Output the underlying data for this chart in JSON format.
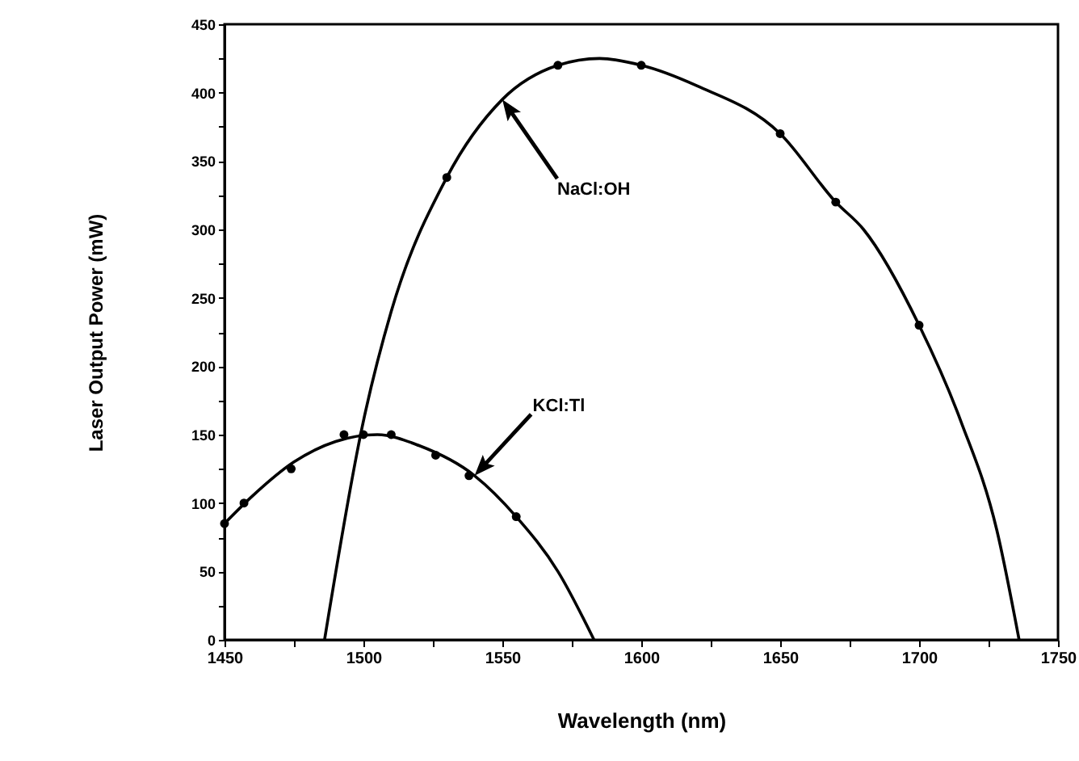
{
  "chart_data": {
    "type": "scatter",
    "xlabel": "Wavelength    (nm)",
    "ylabel": "Laser Output Power    (mW)",
    "xlim": [
      1450,
      1750
    ],
    "ylim": [
      0,
      450
    ],
    "xticks": [
      1450,
      {
        "value": 1475,
        "label": null
      },
      1500,
      {
        "value": 1525,
        "label": null
      },
      1550,
      {
        "value": 1575,
        "label": null
      },
      1600,
      {
        "value": 1625,
        "label": null
      },
      1650,
      {
        "value": 1675,
        "label": null
      },
      1700,
      {
        "value": 1725,
        "label": null
      },
      1750
    ],
    "yticks": [
      0,
      {
        "value": 25,
        "label": null
      },
      50,
      {
        "value": 75,
        "label": null
      },
      100,
      {
        "value": 125,
        "label": null
      },
      150,
      {
        "value": 175,
        "label": null
      },
      200,
      {
        "value": 225,
        "label": null
      },
      250,
      {
        "value": 275,
        "label": null
      },
      300,
      {
        "value": 325,
        "label": null
      },
      350,
      {
        "value": 375,
        "label": null
      },
      400,
      {
        "value": 425,
        "label": null
      },
      450
    ],
    "marker": "circle",
    "grid": false,
    "series": [
      {
        "type": "scatter",
        "color": "#000000",
        "x": [
          1450,
          1457,
          1474,
          1493,
          1500,
          1510,
          1526,
          1538,
          1555
        ],
        "values": [
          85,
          100,
          125,
          150,
          150,
          150,
          135,
          120,
          90
        ]
      },
      {
        "type": "line",
        "color": "#000000",
        "marker": "none",
        "x": [
          1450,
          1460,
          1475,
          1490,
          1505,
          1520,
          1540,
          1555,
          1570,
          1583
        ],
        "values": [
          85,
          105,
          130,
          145,
          150,
          142,
          120,
          90,
          50,
          0
        ]
      },
      {
        "type": "scatter",
        "color": "#000000",
        "x": [
          1530,
          1570,
          1600,
          1650,
          1670,
          1700
        ],
        "values": [
          338,
          420,
          420,
          370,
          320,
          230
        ]
      },
      {
        "type": "line",
        "color": "#000000",
        "marker": "none",
        "x": [
          1486,
          1500,
          1510,
          1530,
          1550,
          1570,
          1585,
          1600,
          1620,
          1650,
          1670,
          1680,
          1700,
          1715,
          1728,
          1736
        ],
        "values": [
          0,
          160,
          240,
          338,
          395,
          420,
          425,
          420,
          405,
          370,
          320,
          300,
          230,
          160,
          80,
          0
        ]
      }
    ],
    "annotations": [
      "NaCl:OH",
      "KCl:Tl"
    ]
  }
}
